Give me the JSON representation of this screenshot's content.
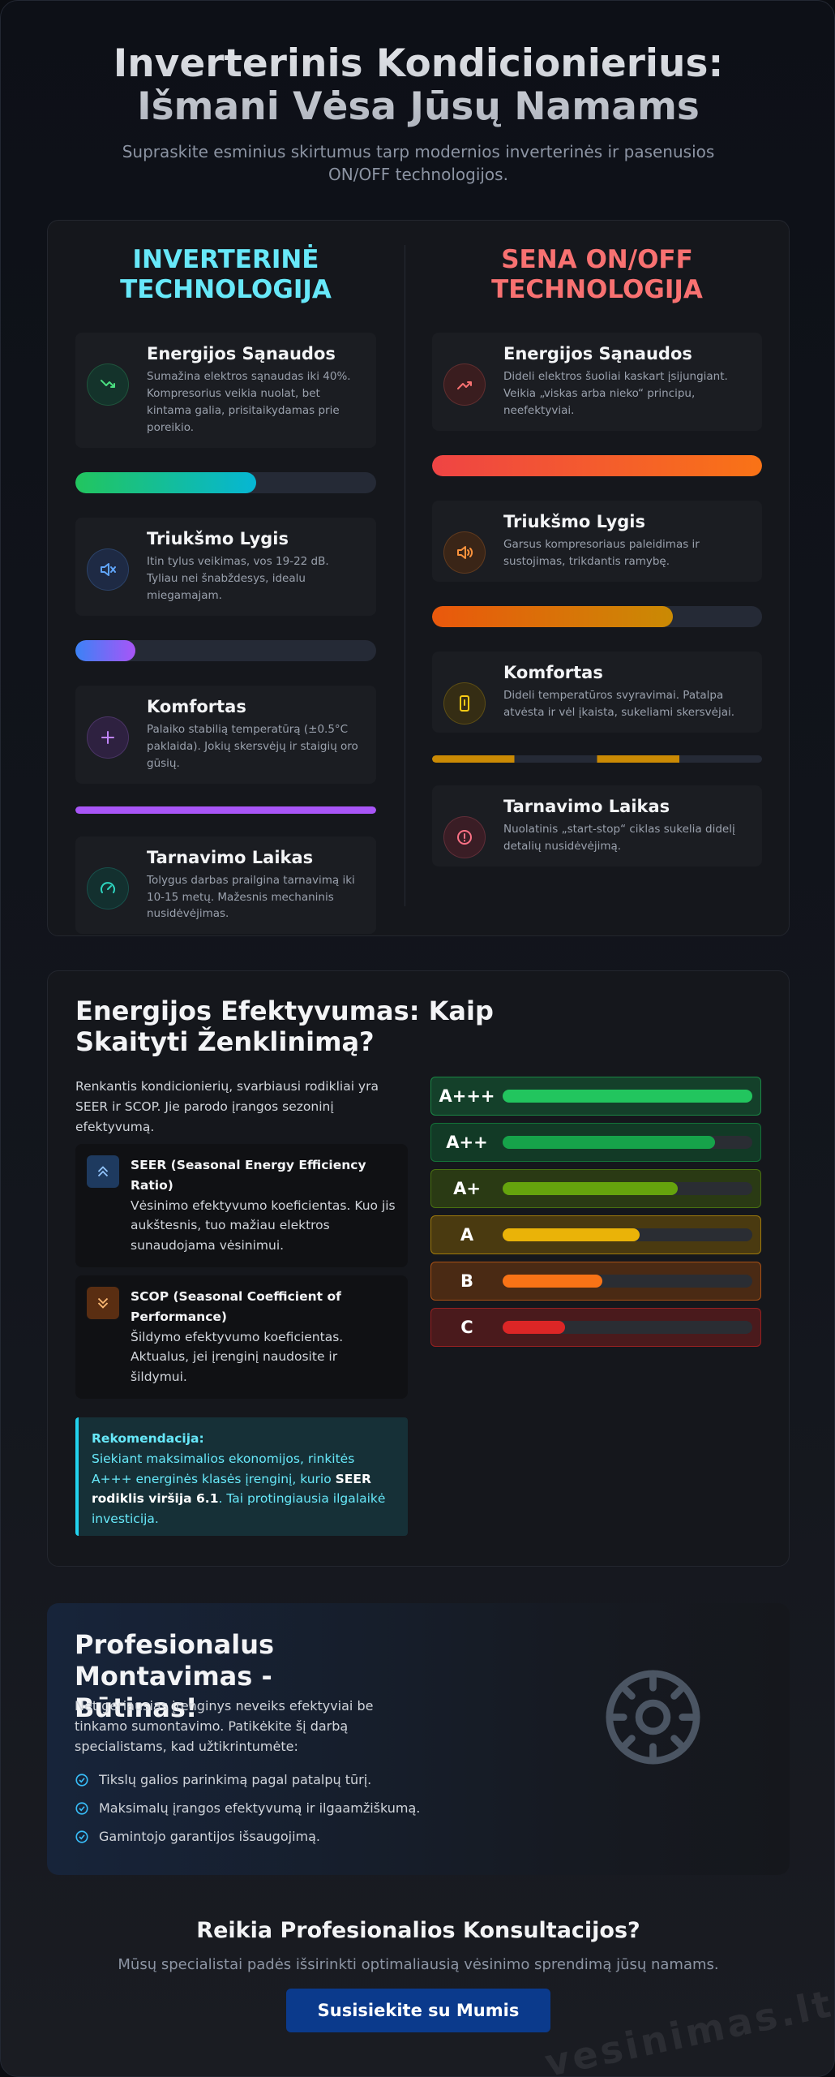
{
  "header": {
    "title": "Inverterinis Kondicionierius: Išmani Vėsa Jūsų Namams",
    "subtitle": "Supraskite esminius skirtumus tarp modernios inverterinės ir pasenusios ON/OFF technologijos."
  },
  "comparison": {
    "inverter": {
      "title": "INVERTERINĖ TECHNOLOGIJA",
      "items": [
        {
          "title": "Energijos Sąnaudos",
          "text": "Sumažina elektros sąnaudas iki 40%. Kompresorius veikia nuolat, bet kintama galia, prisitaikydamas prie poreikio."
        },
        {
          "title": "Triukšmo Lygis",
          "text": "Itin tylus veikimas, vos 19-22 dB. Tyliau nei šnabždesys, idealu miegamajam."
        },
        {
          "title": "Komfortas",
          "text": "Palaiko stabilią temperatūrą (±0.5°C paklaida). Jokių skersvėjų ir staigių oro gūsių."
        },
        {
          "title": "Tarnavimo Laikas",
          "text": "Tolygus darbas prailgina tarnavimą iki 10-15 metų. Mažesnis mechaninis nusidėvėjimas."
        }
      ]
    },
    "onoff": {
      "title": "SENA ON/OFF TECHNOLOGIJA",
      "items": [
        {
          "title": "Energijos Sąnaudos",
          "text": "Dideli elektros šuoliai kaskart įsijungiant. Veikia „viskas arba nieko“ principu, neefektyviai."
        },
        {
          "title": "Triukšmo Lygis",
          "text": "Garsus kompresoriaus paleidimas ir sustojimas, trikdantis ramybę."
        },
        {
          "title": "Komfortas",
          "text": "Dideli temperatūros svyravimai. Patalpa atvėsta ir vėl įkaista, sukeliami skersvėjai."
        },
        {
          "title": "Tarnavimo Laikas",
          "text": "Nuolatinis „start-stop“ ciklas sukelia didelį detalių nusidėvėjimą."
        }
      ]
    }
  },
  "efficiency": {
    "title": "Energijos Efektyvumas: Kaip Skaityti Ženklinimą?",
    "intro": "Renkantis kondicionierių, svarbiausi rodikliai yra SEER ir SCOP. Jie parodo įrangos sezoninį efektyvumą.",
    "terms": [
      {
        "name": "SEER (Seasonal Energy Efficiency Ratio)",
        "text": "Vėsinimo efektyvumo koeficientas. Kuo jis aukštesnis, tuo mažiau elektros sunaudojama vėsinimui."
      },
      {
        "name": "SCOP (Seasonal Coefficient of Performance)",
        "text": "Šildymo efektyvumo koeficientas. Aktualus, jei įrenginį naudosite ir šildymui."
      }
    ],
    "recommendation": {
      "label": "Rekomendacija:",
      "text_before": "Siekiant maksimalios ekonomijos, rinkitės A+++ energinės klasės įrenginį, kurio ",
      "emphasis": "SEER rodiklis viršija 6.1",
      "text_after": ". Tai protingiausia ilgalaikė investicija."
    },
    "classes": [
      "A+++",
      "A++",
      "A+",
      "A",
      "B",
      "C"
    ]
  },
  "installation": {
    "title": "Profesionalus Montavimas - Būtinas!",
    "text": "Net geriausias įrenginys neveiks efektyviai be tinkamo sumontavimo. Patikėkite šį darbą specialistams, kad užtikrintumėte:",
    "checklist": [
      "Tikslų galios parinkimą pagal patalpų tūrį.",
      "Maksimalų įrangos efektyvumą ir ilgaamžiškumą.",
      "Gamintojo garantijos išsaugojimą."
    ]
  },
  "cta": {
    "title": "Reikia Profesionalios Konsultacijos?",
    "text": "Mūsų specialistai padės išsirinkti optimaliausią vėsinimo sprendimą jūsų namams.",
    "button": "Susisiekite su Mumis"
  },
  "watermark": "vesinimas.lt"
}
